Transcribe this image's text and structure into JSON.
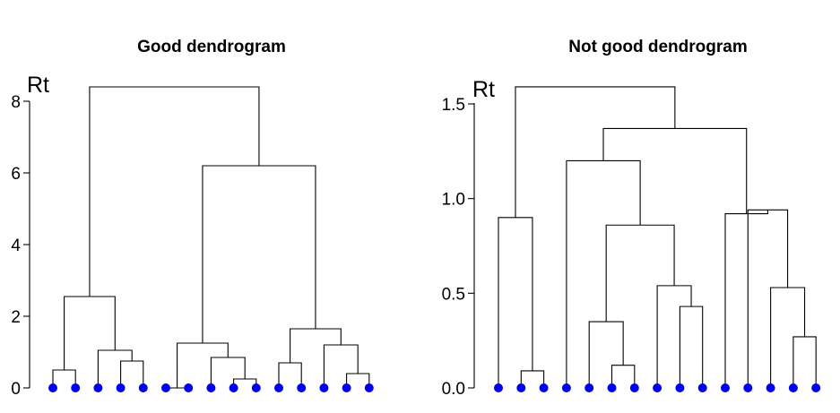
{
  "colors": {
    "leaf": "#0000ee",
    "line": "#000000"
  },
  "chart_data": [
    {
      "type": "dendrogram",
      "title": "Good dendrogram",
      "ylabel": "Rt",
      "ylim": [
        0,
        8
      ],
      "yticks": [
        0,
        2,
        4,
        6,
        8
      ],
      "ytick_labels": [
        "0",
        "2",
        "4",
        "6",
        "8"
      ],
      "n_leaves": 15,
      "merges": [
        {
          "a": 0,
          "b": 1,
          "h": 0.5
        },
        {
          "a": 3,
          "b": 4,
          "h": 0.75
        },
        {
          "a": 2,
          "b": -2,
          "h": 1.05
        },
        {
          "a": -1,
          "b": -3,
          "h": 2.55
        },
        {
          "a": 8,
          "b": 9,
          "h": 0.25
        },
        {
          "a": 7,
          "b": -5,
          "h": 0.85
        },
        {
          "a": 5,
          "b": 6,
          "h": 0.0
        },
        {
          "a": -6,
          "b": -7,
          "h": 1.25
        },
        {
          "a": 10,
          "b": 11,
          "h": 0.7
        },
        {
          "a": 13,
          "b": 14,
          "h": 0.4
        },
        {
          "a": 12,
          "b": -10,
          "h": 1.2
        },
        {
          "a": -9,
          "b": -11,
          "h": 1.65
        },
        {
          "a": -8,
          "b": -12,
          "h": 6.2
        },
        {
          "a": -4,
          "b": -13,
          "h": 8.4
        }
      ]
    },
    {
      "type": "dendrogram",
      "title": "Not good dendrogram",
      "ylabel": "Rt",
      "ylim": [
        0,
        1.5
      ],
      "yticks": [
        0,
        0.5,
        1,
        1.5
      ],
      "ytick_labels": [
        "0.0",
        "0.5",
        "1.0",
        "1.5"
      ],
      "n_leaves": 15,
      "merges": [
        {
          "a": 1,
          "b": 2,
          "h": 0.09
        },
        {
          "a": 0,
          "b": -1,
          "h": 0.9
        },
        {
          "a": 5,
          "b": 6,
          "h": 0.12
        },
        {
          "a": 4,
          "b": -3,
          "h": 0.35
        },
        {
          "a": 8,
          "b": 9,
          "h": 0.43
        },
        {
          "a": 7,
          "b": -5,
          "h": 0.54
        },
        {
          "a": -4,
          "b": -6,
          "h": 0.86
        },
        {
          "a": 3,
          "b": -7,
          "h": 1.2
        },
        {
          "a": 13,
          "b": 14,
          "h": 0.27
        },
        {
          "a": 12,
          "b": -9,
          "h": 0.53
        },
        {
          "a": 11,
          "b": -10,
          "h": 0.94
        },
        {
          "a": 10,
          "b": -11,
          "h": 0.92
        },
        {
          "a": -8,
          "b": -12,
          "h": 1.37
        },
        {
          "a": -2,
          "b": -13,
          "h": 1.59
        }
      ]
    }
  ]
}
